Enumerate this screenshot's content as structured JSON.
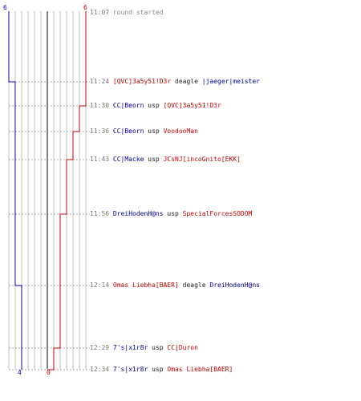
{
  "colors": {
    "team_blue": "#0000b4",
    "team_red": "#c00000",
    "time_text": "#777777",
    "grid_line": "#bbbbbb",
    "center_line": "#000000",
    "dotted_line": "#aaaaaa"
  },
  "header": {
    "left_count_top": "6",
    "right_count_top": "6",
    "left_count_bottom": "4",
    "right_count_bottom": "0"
  },
  "log": [
    {
      "time": "11:07",
      "text": "round started"
    },
    {
      "time": "11:24",
      "killer": "[QVC]3a5y51!D3r",
      "killer_team": "red",
      "weapon": "deagle",
      "victim": "|jaeger|meister",
      "victim_team": "blue"
    },
    {
      "time": "11:30",
      "killer": "CC|Beorn",
      "killer_team": "blue",
      "weapon": "usp",
      "victim": "[QVC]3a5y51!D3r",
      "victim_team": "red"
    },
    {
      "time": "11:36",
      "killer": "CC|Beorn",
      "killer_team": "blue",
      "weapon": "usp",
      "victim": "VoodooMan",
      "victim_team": "red"
    },
    {
      "time": "11:43",
      "killer": "CC|Macke",
      "killer_team": "blue",
      "weapon": "usp",
      "victim": "JCsNJ[incoGnito[EKK]",
      "victim_team": "red"
    },
    {
      "time": "11:56",
      "killer": "DreiHodenH@ns",
      "killer_team": "blue",
      "weapon": "usp",
      "victim": "SpecialForcesSODOM",
      "victim_team": "red"
    },
    {
      "time": "12:14",
      "killer": "Omas Liebha[BAER]",
      "killer_team": "red",
      "weapon": "deagle",
      "victim": "DreiHodenH@ns",
      "victim_team": "blue"
    },
    {
      "time": "12:29",
      "killer": "7's|x1r8r",
      "killer_team": "blue",
      "weapon": "usp",
      "victim": "CC|Duron",
      "victim_team": "red"
    },
    {
      "time": "12:34",
      "killer": "7's|x1r8r",
      "killer_team": "blue",
      "weapon": "usp",
      "victim": "Omas Liebha[BAER]",
      "victim_team": "red"
    }
  ]
}
